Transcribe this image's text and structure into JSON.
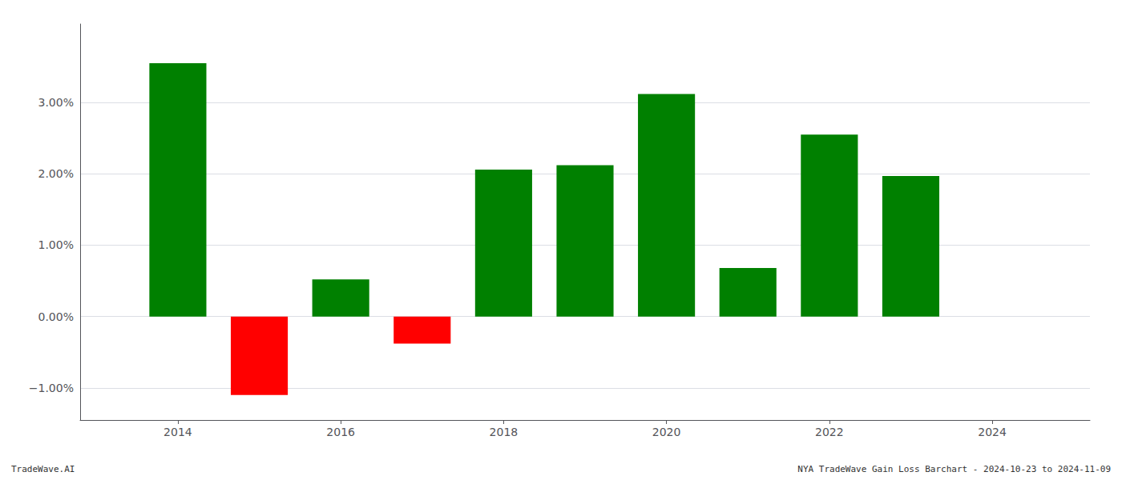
{
  "chart_data": {
    "type": "bar",
    "x": [
      2014,
      2015,
      2016,
      2017,
      2018,
      2019,
      2020,
      2021,
      2022,
      2023
    ],
    "values": [
      3.55,
      -1.1,
      0.52,
      -0.38,
      2.06,
      2.12,
      3.12,
      0.68,
      2.55,
      1.97
    ],
    "colors": [
      "#008000",
      "#ff0000",
      "#008000",
      "#ff0000",
      "#008000",
      "#008000",
      "#008000",
      "#008000",
      "#008000",
      "#008000"
    ],
    "xlim": [
      2012.8,
      2025.2
    ],
    "xticks": [
      2014,
      2016,
      2018,
      2020,
      2022,
      2024
    ],
    "ylim": [
      -1.45,
      4.1
    ],
    "yticks": [
      {
        "value": -1.0,
        "label": "−1.00%"
      },
      {
        "value": 0.0,
        "label": "0.00%"
      },
      {
        "value": 1.0,
        "label": "1.00%"
      },
      {
        "value": 2.0,
        "label": "2.00%"
      },
      {
        "value": 3.0,
        "label": "3.00%"
      }
    ],
    "grid": true,
    "annotations": [
      "TradeWave.AI",
      "NYA TradeWave Gain Loss Barchart - 2024-10-23 to 2024-11-09"
    ]
  }
}
